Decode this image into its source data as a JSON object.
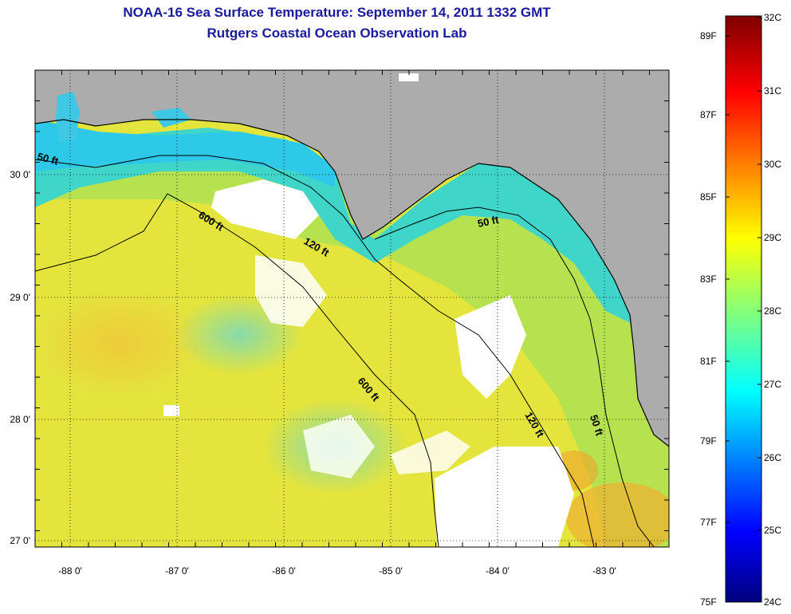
{
  "header": {
    "title": "NOAA-16 Sea Surface Temperature:  September 14, 2011 1332 GMT",
    "subtitle": "Rutgers Coastal Ocean Observation Lab"
  },
  "map": {
    "lon_ticks": [
      "-88 0'",
      "-87 0'",
      "-86 0'",
      "-85 0'",
      "-84 0'",
      "-83 0'"
    ],
    "lat_ticks": [
      "30 0'",
      "29 0'",
      "28 0'",
      "27 0'"
    ],
    "contour_labels": [
      "50 ft",
      "600 ft",
      "120 ft",
      "50 ft",
      "600 ft",
      "120 ft",
      "50 ft"
    ],
    "colors": {
      "land": "#acacac",
      "cloud": "#ffffff",
      "warm": "#e7e537",
      "mid": "#9ee25a",
      "cool": "#3dd7dc"
    }
  },
  "colorbar": {
    "fahrenheit": [
      "89F",
      "87F",
      "85F",
      "83F",
      "81F",
      "79F",
      "77F",
      "75F"
    ],
    "celsius": [
      "32C",
      "31C",
      "30C",
      "29C",
      "28C",
      "27C",
      "26C",
      "25C",
      "24C"
    ]
  }
}
